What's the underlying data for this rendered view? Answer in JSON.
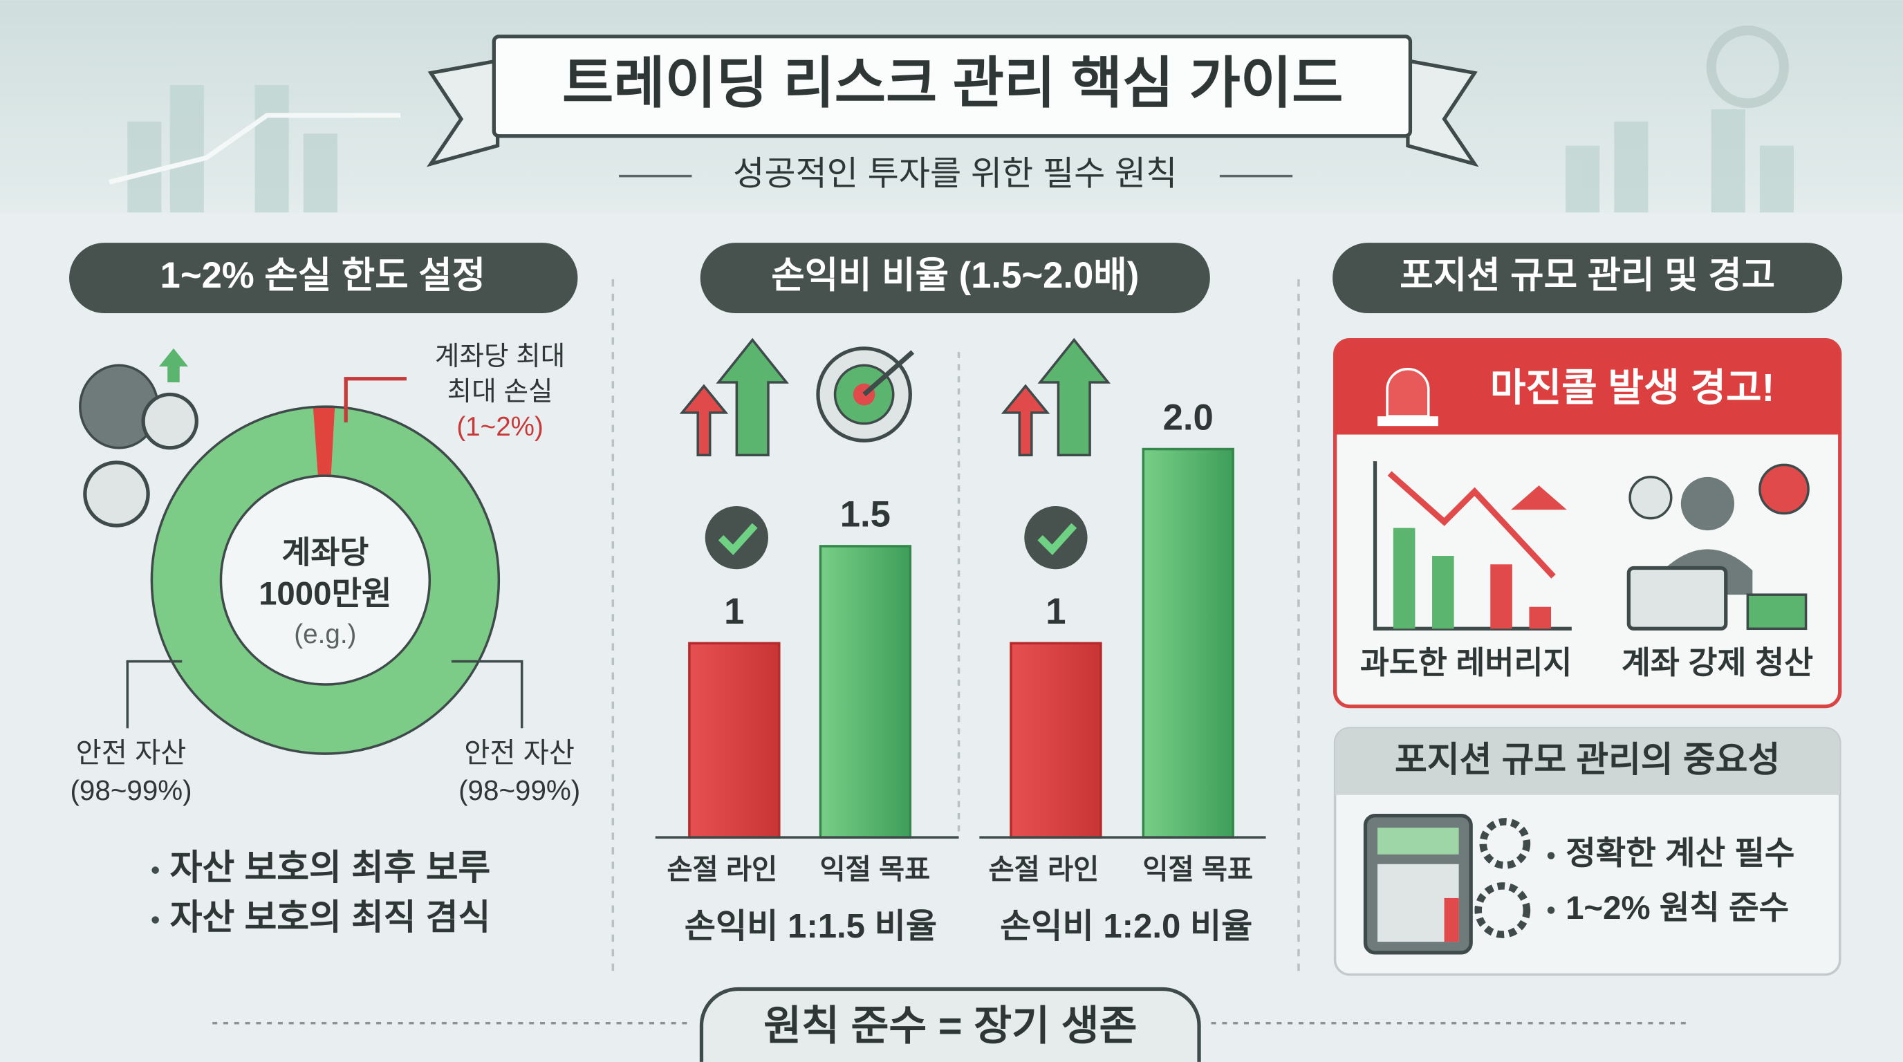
{
  "header": {
    "title": "트레이딩 리스크 관리 핵심 가이드",
    "subtitle": "성공적인 투자를 위한 필수 원칙"
  },
  "sections": [
    {
      "title": "1~2% 손실 한도 설정",
      "donut": {
        "risk": 2,
        "safe": 98,
        "center": [
          "계좌당",
          "1000만원",
          "(e.g.)"
        ],
        "callout": [
          "계좌당 최대",
          "최대 손실",
          "(1~2%)"
        ],
        "left_label": [
          "안전 자산",
          "(98~99%)"
        ],
        "right_label": [
          "안전 자산",
          "(98~99%)"
        ]
      },
      "bullets": [
        "자산 보호의 최후 보루",
        "자산 보호의 최직 겸식"
      ]
    },
    {
      "title": "손익비 비율 (1.5~2.0배)",
      "charts": [
        {
          "categories": [
            "손절 라인",
            "익절 목표"
          ],
          "values": [
            1,
            1.5
          ],
          "caption": "손익비 1:1.5 비율"
        },
        {
          "categories": [
            "손절 라인",
            "익절 목표"
          ],
          "values": [
            1,
            2.0
          ],
          "value_labels": [
            "1",
            "2.0"
          ],
          "caption": "손익비 1:2.0 비율"
        }
      ]
    },
    {
      "title": "포지션 규모 관리 및 경고",
      "warning": "마진콜 발생 경고!",
      "items": [
        "과도한 레버리지",
        "계좌 강제 청산"
      ],
      "box_title": "포지션 규모 관리의 중요성",
      "bullets": [
        "정확한 계산 필수",
        "1~2% 원칙 준수"
      ]
    }
  ],
  "footer": "원칙 준수 = 장기 생존"
}
